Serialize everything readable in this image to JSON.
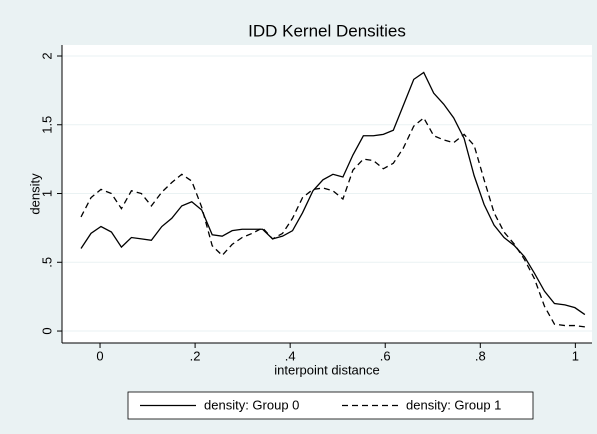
{
  "chart_data": {
    "type": "line",
    "title": "IDD Kernel Densities",
    "x_label": "interpoint distance",
    "y_label": "density",
    "x": [
      -0.04,
      -0.019,
      0.002,
      0.024,
      0.045,
      0.066,
      0.087,
      0.108,
      0.13,
      0.151,
      0.172,
      0.193,
      0.214,
      0.236,
      0.257,
      0.278,
      0.299,
      0.32,
      0.342,
      0.363,
      0.384,
      0.405,
      0.426,
      0.448,
      0.469,
      0.49,
      0.511,
      0.532,
      0.554,
      0.575,
      0.596,
      0.617,
      0.638,
      0.66,
      0.681,
      0.702,
      0.723,
      0.744,
      0.766,
      0.787,
      0.808,
      0.829,
      0.85,
      0.872,
      0.893,
      0.914,
      0.935,
      0.956,
      0.978,
      0.999,
      1.02
    ],
    "series": [
      {
        "name": "density: Group 0",
        "color": "#000000",
        "style": "solid",
        "values": [
          0.6,
          0.71,
          0.76,
          0.72,
          0.61,
          0.68,
          0.67,
          0.66,
          0.76,
          0.82,
          0.91,
          0.94,
          0.88,
          0.7,
          0.69,
          0.73,
          0.74,
          0.74,
          0.74,
          0.67,
          0.69,
          0.73,
          0.86,
          1.02,
          1.1,
          1.14,
          1.12,
          1.28,
          1.42,
          1.42,
          1.43,
          1.46,
          1.64,
          1.83,
          1.88,
          1.73,
          1.65,
          1.55,
          1.4,
          1.13,
          0.92,
          0.77,
          0.68,
          0.62,
          0.54,
          0.42,
          0.29,
          0.2,
          0.19,
          0.17,
          0.12
        ]
      },
      {
        "name": "density: Group 1",
        "color": "#000000",
        "style": "dashed",
        "values": [
          0.83,
          0.97,
          1.03,
          1.0,
          0.89,
          1.02,
          1.0,
          0.91,
          1.01,
          1.08,
          1.14,
          1.09,
          0.9,
          0.62,
          0.55,
          0.63,
          0.68,
          0.71,
          0.75,
          0.67,
          0.71,
          0.82,
          0.97,
          1.03,
          1.04,
          1.02,
          0.96,
          1.17,
          1.25,
          1.24,
          1.18,
          1.22,
          1.33,
          1.49,
          1.55,
          1.42,
          1.39,
          1.37,
          1.43,
          1.35,
          1.1,
          0.86,
          0.72,
          0.63,
          0.52,
          0.38,
          0.18,
          0.05,
          0.04,
          0.04,
          0.03
        ]
      }
    ],
    "xlim": [
      -0.08,
      1.035
    ],
    "xticks": [
      0,
      {
        "value": 0.2,
        "label": ".2"
      },
      {
        "value": 0.4,
        "label": ".4"
      },
      {
        "value": 0.6,
        "label": ".6"
      },
      {
        "value": 0.8,
        "label": ".8"
      },
      1
    ],
    "ylim": [
      -0.087,
      2.08
    ],
    "yticks": [
      0,
      {
        "value": 0.5,
        "label": ".5"
      },
      1,
      {
        "value": 1.5,
        "label": "1.5"
      },
      2
    ],
    "grid": true,
    "legend": "bottom"
  }
}
